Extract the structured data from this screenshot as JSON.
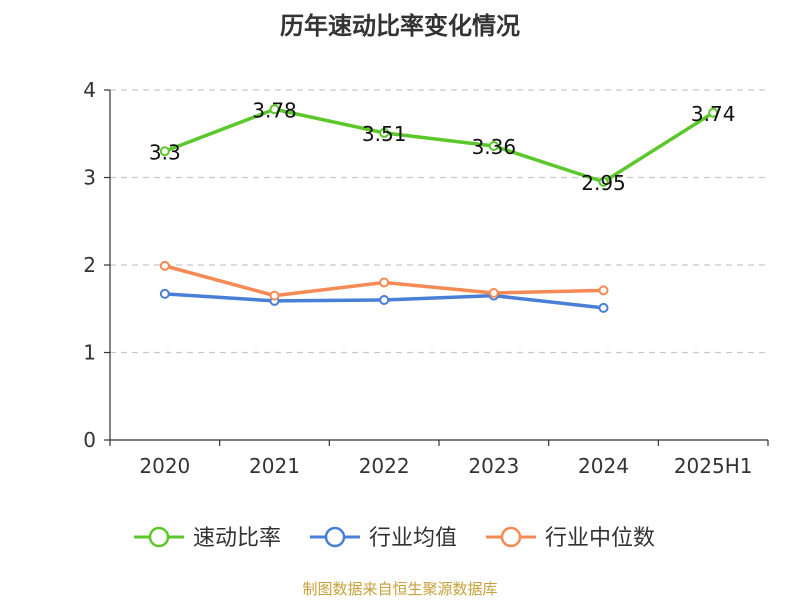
{
  "chart_data": {
    "type": "line",
    "title": "历年速动比率变化情况",
    "categories": [
      "2020",
      "2021",
      "2022",
      "2023",
      "2024",
      "2025H1"
    ],
    "ylim": [
      0,
      4
    ],
    "yticks": [
      0,
      1,
      2,
      3,
      4
    ],
    "grid": true,
    "legend_position": "bottom",
    "series": [
      {
        "name": "速动比率",
        "color": "#5cc72a",
        "values": [
          3.3,
          3.78,
          3.51,
          3.36,
          2.95,
          3.74
        ],
        "labels": [
          "3.3",
          "3.78",
          "3.51",
          "3.36",
          "2.95",
          "3.74"
        ]
      },
      {
        "name": "行业均值",
        "color": "#4a7fd8",
        "values": [
          1.67,
          1.59,
          1.6,
          1.65,
          1.51,
          null
        ]
      },
      {
        "name": "行业中位数",
        "color": "#f58a55",
        "values": [
          1.99,
          1.65,
          1.8,
          1.68,
          1.71,
          null
        ]
      }
    ]
  },
  "source_note": "制图数据来自恒生聚源数据库"
}
